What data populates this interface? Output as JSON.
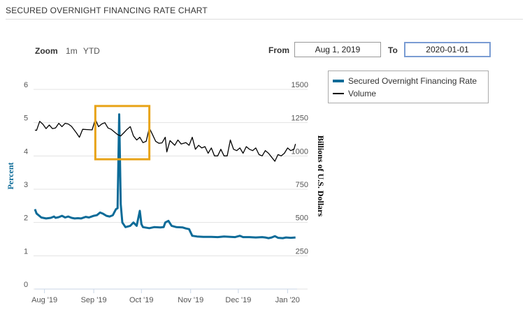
{
  "header": {
    "title": "SECURED OVERNIGHT FINANCING RATE CHART"
  },
  "zoom": {
    "label": "Zoom",
    "options": [
      "1m",
      "YTD"
    ]
  },
  "range": {
    "from_label": "From",
    "from_value": "Aug 1, 2019",
    "to_label": "To",
    "to_value": "2020-01-01"
  },
  "chart_data": {
    "type": "line",
    "ylabel_left": "Percent",
    "ylabel_right": "Billions of U.S. Dollars",
    "ylim_left": [
      0,
      6
    ],
    "ylim_right": [
      0,
      1500
    ],
    "left_ticks": [
      "0",
      "1",
      "2",
      "3",
      "4",
      "5",
      "6"
    ],
    "right_ticks": [
      "250",
      "500",
      "750",
      "1000",
      "1250",
      "1500"
    ],
    "x_ticks": [
      "Aug '19",
      "Sep '19",
      "Oct '19",
      "Nov '19",
      "Dec '19",
      "Jan '20"
    ],
    "x_range": [
      "2019-07-26",
      "2020-01-07"
    ],
    "series": [
      {
        "name": "Secured Overnight Financing Rate",
        "axis": "left",
        "color": "#0c6b98",
        "points": [
          [
            "2019-07-26",
            2.4
          ],
          [
            "2019-07-27",
            2.27
          ],
          [
            "2019-07-30",
            2.15
          ],
          [
            "2019-08-02",
            2.12
          ],
          [
            "2019-08-05",
            2.14
          ],
          [
            "2019-08-07",
            2.18
          ],
          [
            "2019-08-08",
            2.14
          ],
          [
            "2019-08-10",
            2.16
          ],
          [
            "2019-08-12",
            2.2
          ],
          [
            "2019-08-14",
            2.15
          ],
          [
            "2019-08-16",
            2.18
          ],
          [
            "2019-08-18",
            2.14
          ],
          [
            "2019-08-20",
            2.12
          ],
          [
            "2019-08-22",
            2.13
          ],
          [
            "2019-08-24",
            2.12
          ],
          [
            "2019-08-27",
            2.17
          ],
          [
            "2019-08-29",
            2.15
          ],
          [
            "2019-09-01",
            2.2
          ],
          [
            "2019-09-03",
            2.22
          ],
          [
            "2019-09-05",
            2.3
          ],
          [
            "2019-09-07",
            2.26
          ],
          [
            "2019-09-09",
            2.2
          ],
          [
            "2019-09-11",
            2.18
          ],
          [
            "2019-09-13",
            2.22
          ],
          [
            "2019-09-15",
            2.4
          ],
          [
            "2019-09-16",
            2.43
          ],
          [
            "2019-09-17",
            5.25
          ],
          [
            "2019-09-18",
            2.55
          ],
          [
            "2019-09-19",
            2.0
          ],
          [
            "2019-09-21",
            1.86
          ],
          [
            "2019-09-24",
            1.9
          ],
          [
            "2019-09-26",
            2.0
          ],
          [
            "2019-09-28",
            1.9
          ],
          [
            "2019-09-30",
            2.35
          ],
          [
            "2019-10-01",
            1.95
          ],
          [
            "2019-10-02",
            1.86
          ],
          [
            "2019-10-06",
            1.83
          ],
          [
            "2019-10-09",
            1.86
          ],
          [
            "2019-10-13",
            1.85
          ],
          [
            "2019-10-15",
            1.86
          ],
          [
            "2019-10-16",
            2.0
          ],
          [
            "2019-10-18",
            2.05
          ],
          [
            "2019-10-20",
            1.9
          ],
          [
            "2019-10-23",
            1.86
          ],
          [
            "2019-10-27",
            1.85
          ],
          [
            "2019-10-29",
            1.82
          ],
          [
            "2019-10-31",
            1.8
          ],
          [
            "2019-11-02",
            1.6
          ],
          [
            "2019-11-05",
            1.58
          ],
          [
            "2019-11-09",
            1.57
          ],
          [
            "2019-11-14",
            1.57
          ],
          [
            "2019-11-18",
            1.56
          ],
          [
            "2019-11-22",
            1.58
          ],
          [
            "2019-11-26",
            1.57
          ],
          [
            "2019-11-29",
            1.56
          ],
          [
            "2019-12-02",
            1.6
          ],
          [
            "2019-12-04",
            1.56
          ],
          [
            "2019-12-08",
            1.56
          ],
          [
            "2019-12-12",
            1.55
          ],
          [
            "2019-12-16",
            1.56
          ],
          [
            "2019-12-18",
            1.55
          ],
          [
            "2019-12-20",
            1.53
          ],
          [
            "2019-12-22",
            1.55
          ],
          [
            "2019-12-24",
            1.59
          ],
          [
            "2019-12-26",
            1.54
          ],
          [
            "2019-12-29",
            1.53
          ],
          [
            "2019-12-31",
            1.55
          ],
          [
            "2020-01-03",
            1.54
          ],
          [
            "2020-01-06",
            1.55
          ]
        ]
      },
      {
        "name": "Volume",
        "axis": "right",
        "color": "#000000",
        "points": [
          [
            "2019-07-26",
            1195
          ],
          [
            "2019-07-27",
            1192
          ],
          [
            "2019-07-29",
            1260
          ],
          [
            "2019-07-31",
            1238
          ],
          [
            "2019-08-02",
            1205
          ],
          [
            "2019-08-04",
            1232
          ],
          [
            "2019-08-06",
            1205
          ],
          [
            "2019-08-08",
            1210
          ],
          [
            "2019-08-10",
            1245
          ],
          [
            "2019-08-12",
            1220
          ],
          [
            "2019-08-14",
            1245
          ],
          [
            "2019-08-16",
            1240
          ],
          [
            "2019-08-18",
            1222
          ],
          [
            "2019-08-21",
            1175
          ],
          [
            "2019-08-23",
            1140
          ],
          [
            "2019-08-25",
            1200
          ],
          [
            "2019-08-28",
            1198
          ],
          [
            "2019-08-31",
            1196
          ],
          [
            "2019-09-02",
            1275
          ],
          [
            "2019-09-04",
            1220
          ],
          [
            "2019-09-06",
            1240
          ],
          [
            "2019-09-08",
            1250
          ],
          [
            "2019-09-10",
            1210
          ],
          [
            "2019-09-12",
            1200
          ],
          [
            "2019-09-14",
            1180
          ],
          [
            "2019-09-16",
            1160
          ],
          [
            "2019-09-18",
            1150
          ],
          [
            "2019-09-20",
            1175
          ],
          [
            "2019-09-22",
            1200
          ],
          [
            "2019-09-24",
            1220
          ],
          [
            "2019-09-26",
            1150
          ],
          [
            "2019-09-28",
            1120
          ],
          [
            "2019-09-30",
            1140
          ],
          [
            "2019-10-02",
            1100
          ],
          [
            "2019-10-04",
            1110
          ],
          [
            "2019-10-06",
            1210
          ],
          [
            "2019-10-08",
            1160
          ],
          [
            "2019-10-10",
            1110
          ],
          [
            "2019-10-12",
            1095
          ],
          [
            "2019-10-14",
            1098
          ],
          [
            "2019-10-16",
            1140
          ],
          [
            "2019-10-17",
            1030
          ],
          [
            "2019-10-19",
            1115
          ],
          [
            "2019-10-22",
            1080
          ],
          [
            "2019-10-24",
            1120
          ],
          [
            "2019-10-26",
            1090
          ],
          [
            "2019-10-29",
            1100
          ],
          [
            "2019-10-31",
            1080
          ],
          [
            "2019-11-02",
            1140
          ],
          [
            "2019-11-04",
            1050
          ],
          [
            "2019-11-06",
            1080
          ],
          [
            "2019-11-08",
            1060
          ],
          [
            "2019-11-10",
            1070
          ],
          [
            "2019-11-12",
            1020
          ],
          [
            "2019-11-14",
            1060
          ],
          [
            "2019-11-16",
            1000
          ],
          [
            "2019-11-18",
            1000
          ],
          [
            "2019-11-20",
            1050
          ],
          [
            "2019-11-22",
            1000
          ],
          [
            "2019-11-24",
            1000
          ],
          [
            "2019-11-26",
            1120
          ],
          [
            "2019-11-28",
            1050
          ],
          [
            "2019-11-30",
            1040
          ],
          [
            "2019-12-02",
            1060
          ],
          [
            "2019-12-04",
            1020
          ],
          [
            "2019-12-06",
            1070
          ],
          [
            "2019-12-08",
            1050
          ],
          [
            "2019-12-10",
            1040
          ],
          [
            "2019-12-12",
            1060
          ],
          [
            "2019-12-14",
            1010
          ],
          [
            "2019-12-16",
            1000
          ],
          [
            "2019-12-18",
            1040
          ],
          [
            "2019-12-20",
            1020
          ],
          [
            "2019-12-22",
            990
          ],
          [
            "2019-12-24",
            960
          ],
          [
            "2019-12-26",
            1010
          ],
          [
            "2019-12-28",
            1000
          ],
          [
            "2019-12-30",
            1020
          ],
          [
            "2020-01-01",
            1060
          ],
          [
            "2020-01-03",
            1040
          ],
          [
            "2020-01-05",
            1050
          ],
          [
            "2020-01-06",
            1090
          ]
        ]
      }
    ],
    "annotation": {
      "type": "box",
      "color": "#e8a317",
      "x_start": "2019-09-02",
      "x_end": "2019-10-06",
      "y_low_left": 3.9,
      "y_high_left": 5.5
    }
  }
}
